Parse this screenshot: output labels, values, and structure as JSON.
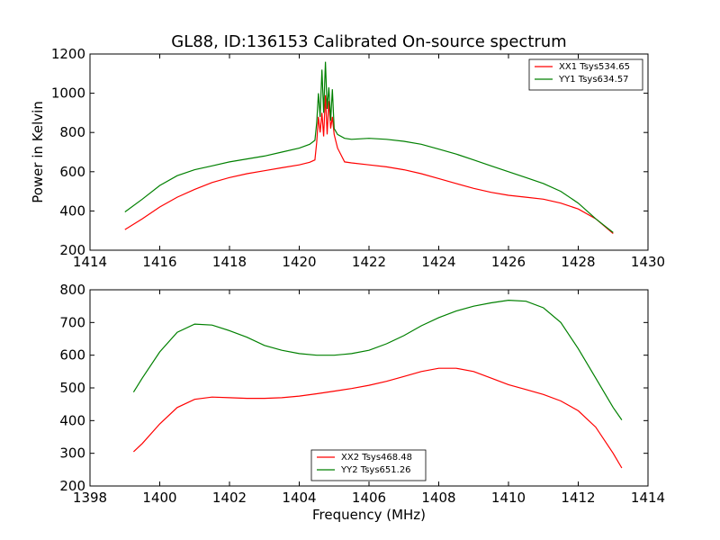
{
  "figure": {
    "title": "GL88, ID:136153 Calibrated On-source spectrum",
    "xlabel": "Frequency (MHz)"
  },
  "chart_data": [
    {
      "type": "line",
      "title": "GL88, ID:136153 Calibrated On-source spectrum",
      "xlabel": "",
      "ylabel": "Power in Kelvin",
      "xlim": [
        1414,
        1430
      ],
      "ylim": [
        200,
        1200
      ],
      "xticks": [
        1414,
        1416,
        1418,
        1420,
        1422,
        1424,
        1426,
        1428,
        1430
      ],
      "yticks": [
        200,
        400,
        600,
        800,
        1000,
        1200
      ],
      "grid": false,
      "legend_position": "upper right",
      "series": [
        {
          "name": "XX1 Tsys534.65",
          "color": "#ff0000",
          "points": [
            [
              1415,
              305
            ],
            [
              1415.5,
              360
            ],
            [
              1416,
              420
            ],
            [
              1416.5,
              470
            ],
            [
              1417,
              510
            ],
            [
              1417.5,
              545
            ],
            [
              1418,
              570
            ],
            [
              1418.5,
              590
            ],
            [
              1419,
              605
            ],
            [
              1419.5,
              620
            ],
            [
              1420,
              635
            ],
            [
              1420.3,
              648
            ],
            [
              1420.45,
              660
            ],
            [
              1420.5,
              750
            ],
            [
              1420.55,
              880
            ],
            [
              1420.6,
              800
            ],
            [
              1420.65,
              900
            ],
            [
              1420.7,
              780
            ],
            [
              1420.75,
              990
            ],
            [
              1420.8,
              790
            ],
            [
              1420.85,
              960
            ],
            [
              1420.9,
              820
            ],
            [
              1420.95,
              880
            ],
            [
              1421.0,
              790
            ],
            [
              1421.1,
              720
            ],
            [
              1421.3,
              650
            ],
            [
              1421.5,
              645
            ],
            [
              1422,
              635
            ],
            [
              1422.5,
              625
            ],
            [
              1423,
              610
            ],
            [
              1423.5,
              590
            ],
            [
              1424,
              565
            ],
            [
              1424.5,
              540
            ],
            [
              1425,
              515
            ],
            [
              1425.5,
              495
            ],
            [
              1426,
              480
            ],
            [
              1426.5,
              470
            ],
            [
              1427,
              460
            ],
            [
              1427.5,
              440
            ],
            [
              1428,
              410
            ],
            [
              1428.5,
              360
            ],
            [
              1429,
              285
            ]
          ]
        },
        {
          "name": "YY1 Tsys634.57",
          "color": "#008000",
          "points": [
            [
              1415,
              395
            ],
            [
              1415.5,
              460
            ],
            [
              1416,
              530
            ],
            [
              1416.5,
              580
            ],
            [
              1417,
              610
            ],
            [
              1417.5,
              630
            ],
            [
              1418,
              650
            ],
            [
              1418.5,
              665
            ],
            [
              1419,
              680
            ],
            [
              1419.5,
              700
            ],
            [
              1420,
              720
            ],
            [
              1420.3,
              740
            ],
            [
              1420.45,
              760
            ],
            [
              1420.5,
              850
            ],
            [
              1420.55,
              1000
            ],
            [
              1420.6,
              880
            ],
            [
              1420.65,
              1120
            ],
            [
              1420.7,
              900
            ],
            [
              1420.75,
              1160
            ],
            [
              1420.8,
              920
            ],
            [
              1420.85,
              1030
            ],
            [
              1420.9,
              860
            ],
            [
              1420.95,
              1020
            ],
            [
              1421.0,
              820
            ],
            [
              1421.1,
              790
            ],
            [
              1421.3,
              770
            ],
            [
              1421.5,
              765
            ],
            [
              1422,
              770
            ],
            [
              1422.5,
              765
            ],
            [
              1423,
              755
            ],
            [
              1423.5,
              740
            ],
            [
              1424,
              715
            ],
            [
              1424.5,
              690
            ],
            [
              1425,
              660
            ],
            [
              1425.5,
              630
            ],
            [
              1426,
              600
            ],
            [
              1426.5,
              570
            ],
            [
              1427,
              540
            ],
            [
              1427.5,
              500
            ],
            [
              1428,
              440
            ],
            [
              1428.5,
              360
            ],
            [
              1429,
              290
            ]
          ]
        }
      ]
    },
    {
      "type": "line",
      "title": "",
      "xlabel": "Frequency (MHz)",
      "ylabel": "",
      "xlim": [
        1398,
        1414
      ],
      "ylim": [
        200,
        800
      ],
      "xticks": [
        1398,
        1400,
        1402,
        1404,
        1406,
        1408,
        1410,
        1412,
        1414
      ],
      "yticks": [
        200,
        300,
        400,
        500,
        600,
        700,
        800
      ],
      "grid": false,
      "legend_position": "lower center",
      "series": [
        {
          "name": "XX2 Tsys468.48",
          "color": "#ff0000",
          "points": [
            [
              1399.25,
              305
            ],
            [
              1399.5,
              330
            ],
            [
              1400,
              390
            ],
            [
              1400.5,
              440
            ],
            [
              1401,
              465
            ],
            [
              1401.5,
              472
            ],
            [
              1402,
              470
            ],
            [
              1402.5,
              468
            ],
            [
              1403,
              468
            ],
            [
              1403.5,
              470
            ],
            [
              1404,
              475
            ],
            [
              1404.5,
              482
            ],
            [
              1405,
              490
            ],
            [
              1405.5,
              498
            ],
            [
              1406,
              508
            ],
            [
              1406.5,
              520
            ],
            [
              1407,
              535
            ],
            [
              1407.5,
              550
            ],
            [
              1408,
              560
            ],
            [
              1408.5,
              560
            ],
            [
              1409,
              550
            ],
            [
              1409.5,
              530
            ],
            [
              1410,
              510
            ],
            [
              1410.5,
              495
            ],
            [
              1411,
              480
            ],
            [
              1411.5,
              460
            ],
            [
              1412,
              430
            ],
            [
              1412.5,
              380
            ],
            [
              1413,
              300
            ],
            [
              1413.25,
              255
            ]
          ]
        },
        {
          "name": "YY2 Tsys651.26",
          "color": "#008000",
          "points": [
            [
              1399.25,
              487
            ],
            [
              1399.5,
              530
            ],
            [
              1400,
              610
            ],
            [
              1400.5,
              670
            ],
            [
              1401,
              695
            ],
            [
              1401.5,
              692
            ],
            [
              1402,
              675
            ],
            [
              1402.5,
              655
            ],
            [
              1403,
              630
            ],
            [
              1403.5,
              615
            ],
            [
              1404,
              605
            ],
            [
              1404.5,
              600
            ],
            [
              1405,
              600
            ],
            [
              1405.5,
              605
            ],
            [
              1406,
              615
            ],
            [
              1406.5,
              635
            ],
            [
              1407,
              660
            ],
            [
              1407.5,
              690
            ],
            [
              1408,
              715
            ],
            [
              1408.5,
              735
            ],
            [
              1409,
              750
            ],
            [
              1409.5,
              760
            ],
            [
              1410,
              768
            ],
            [
              1410.5,
              765
            ],
            [
              1411,
              745
            ],
            [
              1411.5,
              700
            ],
            [
              1412,
              620
            ],
            [
              1412.5,
              530
            ],
            [
              1413,
              440
            ],
            [
              1413.25,
              402
            ]
          ]
        }
      ]
    }
  ]
}
